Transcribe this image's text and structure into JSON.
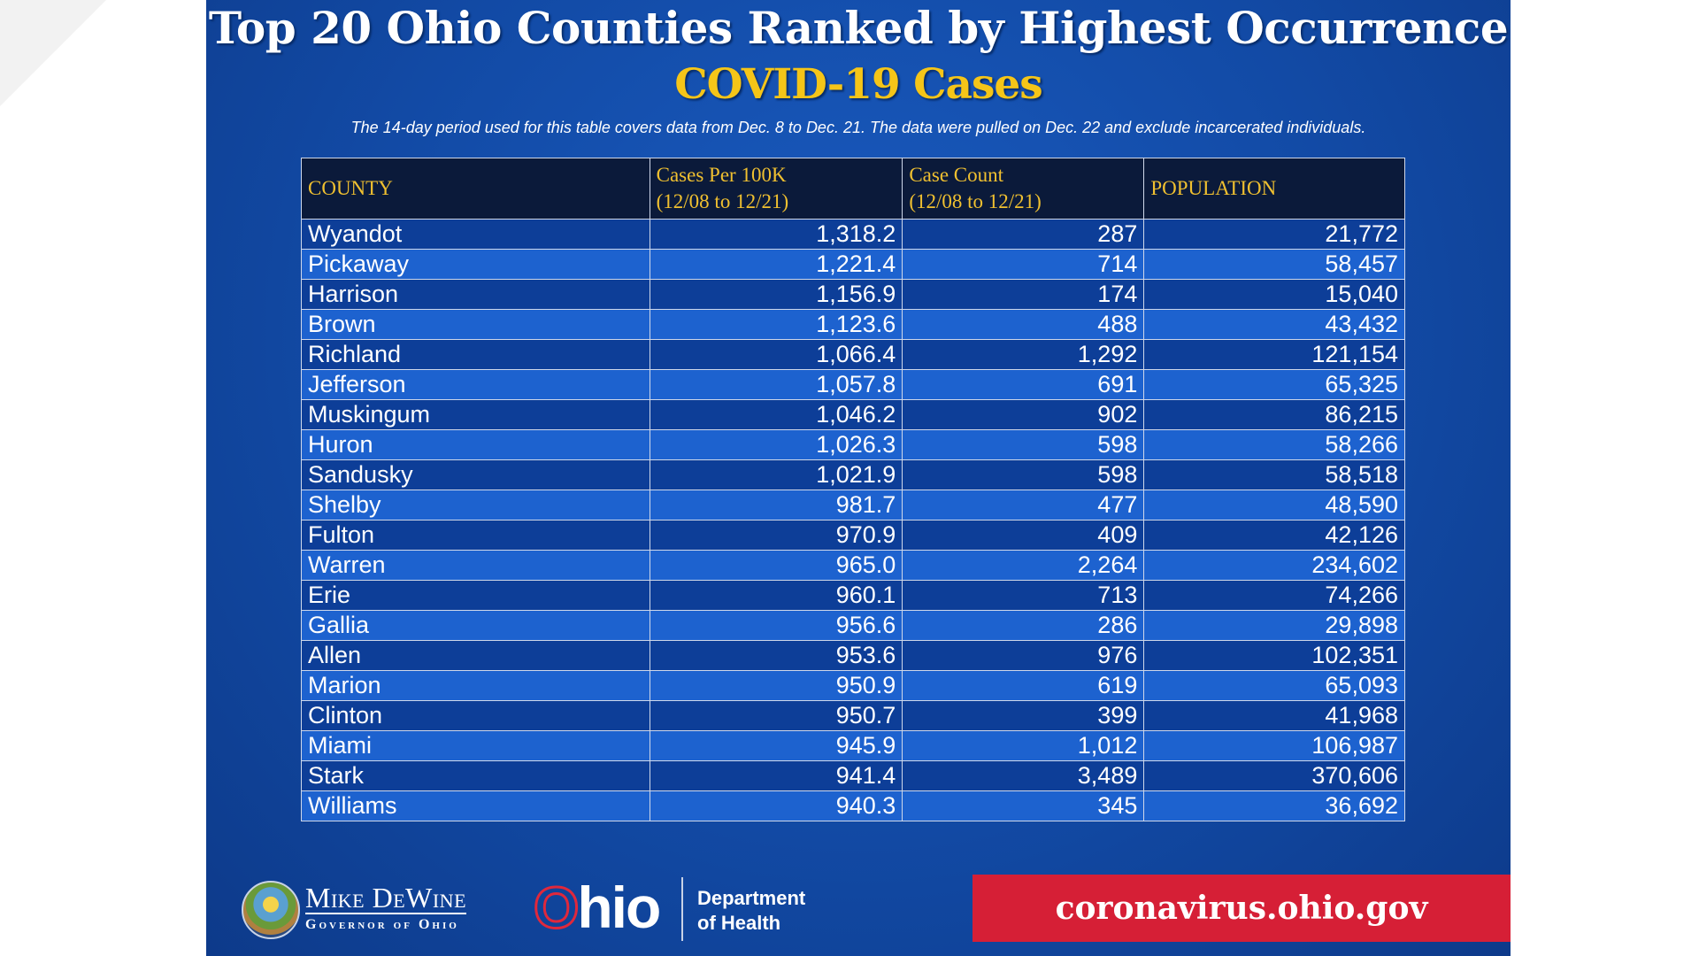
{
  "title": "Top 20 Ohio Counties Ranked by Highest Occurrence",
  "subtitle": "COVID-19 Cases",
  "note": "The 14-day period used for this table covers data from Dec. 8 to Dec. 21. The data were pulled on Dec. 22 and exclude incarcerated individuals.",
  "colors": {
    "panel": "#124aa5",
    "accent_yellow": "#f5c518",
    "url_red": "#d61f36",
    "row_dark": "#0d3e98",
    "row_light": "#1d62cf",
    "header_bg": "#0b1a3a"
  },
  "table": {
    "headers": [
      {
        "line1": "COUNTY",
        "line2": ""
      },
      {
        "line1": "Cases Per 100K",
        "line2": "(12/08 to 12/21)"
      },
      {
        "line1": "Case Count",
        "line2": "(12/08 to 12/21)"
      },
      {
        "line1": "POPULATION",
        "line2": ""
      }
    ],
    "rows": [
      [
        "Wyandot",
        "1,318.2",
        "287",
        "21,772"
      ],
      [
        "Pickaway",
        "1,221.4",
        "714",
        "58,457"
      ],
      [
        "Harrison",
        "1,156.9",
        "174",
        "15,040"
      ],
      [
        "Brown",
        "1,123.6",
        "488",
        "43,432"
      ],
      [
        "Richland",
        "1,066.4",
        "1,292",
        "121,154"
      ],
      [
        "Jefferson",
        "1,057.8",
        "691",
        "65,325"
      ],
      [
        "Muskingum",
        "1,046.2",
        "902",
        "86,215"
      ],
      [
        "Huron",
        "1,026.3",
        "598",
        "58,266"
      ],
      [
        "Sandusky",
        "1,021.9",
        "598",
        "58,518"
      ],
      [
        "Shelby",
        "981.7",
        "477",
        "48,590"
      ],
      [
        "Fulton",
        "970.9",
        "409",
        "42,126"
      ],
      [
        "Warren",
        "965.0",
        "2,264",
        "234,602"
      ],
      [
        "Erie",
        "960.1",
        "713",
        "74,266"
      ],
      [
        "Gallia",
        "956.6",
        "286",
        "29,898"
      ],
      [
        "Allen",
        "953.6",
        "976",
        "102,351"
      ],
      [
        "Marion",
        "950.9",
        "619",
        "65,093"
      ],
      [
        "Clinton",
        "950.7",
        "399",
        "41,968"
      ],
      [
        "Miami",
        "945.9",
        "1,012",
        "106,987"
      ],
      [
        "Stark",
        "941.4",
        "3,489",
        "370,606"
      ],
      [
        "Williams",
        "940.3",
        "345",
        "36,692"
      ]
    ]
  },
  "footer": {
    "governor_name": "Mike DeWine",
    "governor_title": "Governor of Ohio",
    "ohio_o": "O",
    "ohio_rest": "hio",
    "dept_line1": "Department",
    "dept_line2": "of Health",
    "url": "coronavirus.ohio.gov",
    "seal_icon": "ohio-state-seal"
  }
}
